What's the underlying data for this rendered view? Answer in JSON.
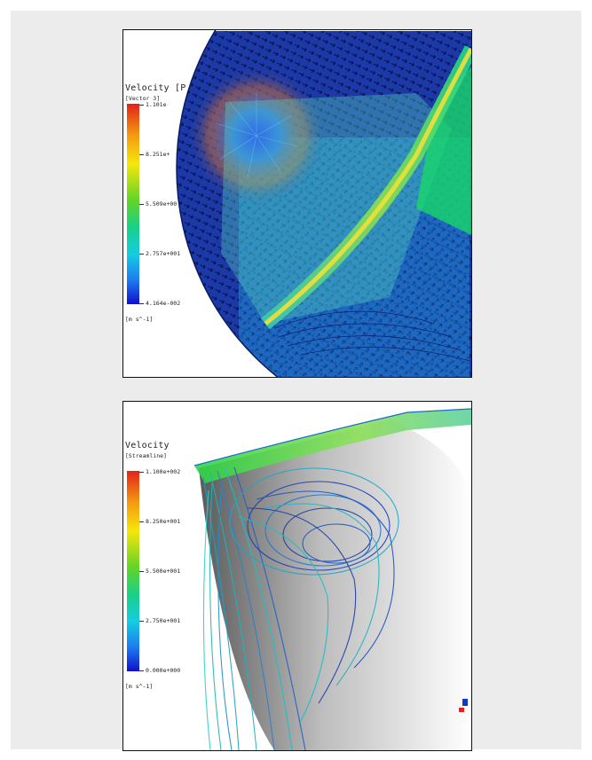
{
  "top_plot": {
    "legend": {
      "title": "Velocity",
      "title_suffix": "[P",
      "subtitle": "[Vector 3]",
      "ticks": [
        "1.101e",
        "8.251e+",
        "5.509e+00",
        "2.757e+001",
        "4.164e-002"
      ],
      "unit": "[m s^-1]",
      "colors": [
        "#e2231a",
        "#f5e60c",
        "#63d428",
        "#16cce0",
        "#1010cc"
      ]
    }
  },
  "bottom_plot": {
    "legend": {
      "title": "Velocity",
      "subtitle": "[Streamline]",
      "ticks": [
        "1.100e+002",
        "8.250e+001",
        "5.500e+001",
        "2.750e+001",
        "0.000e+000"
      ],
      "unit": "[m s^-1]",
      "colors": [
        "#e2231a",
        "#f5e60c",
        "#63d428",
        "#16cce0",
        "#1010cc"
      ]
    }
  }
}
